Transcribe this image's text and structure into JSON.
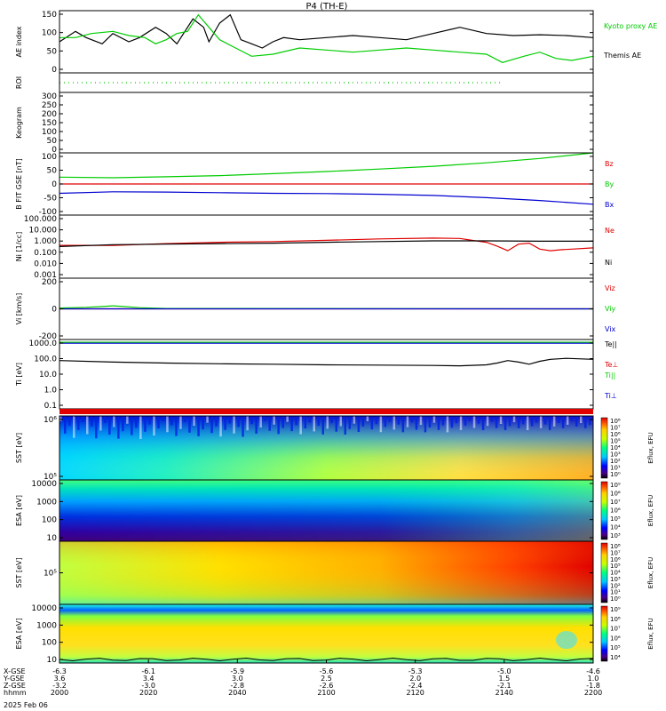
{
  "title": "P4 (TH-E)",
  "date_label": "2025 Feb 06",
  "colors": {
    "red": "#e00000",
    "green": "#00cc00",
    "blue": "#0000d0",
    "black": "#000000"
  },
  "x_axis": {
    "row_labels": [
      "X-GSE",
      "Y-GSE",
      "Z-GSE",
      "hhmm"
    ],
    "ticks": [
      {
        "x": "-6.3",
        "y": "3.6",
        "z": "-3.2",
        "t": "2000",
        "frac": 0.0
      },
      {
        "x": "-6.1",
        "y": "3.4",
        "z": "-3.0",
        "t": "2020",
        "frac": 0.1667
      },
      {
        "x": "-5.9",
        "y": "3.0",
        "z": "-2.8",
        "t": "2040",
        "frac": 0.3333
      },
      {
        "x": "-5.6",
        "y": "2.5",
        "z": "-2.6",
        "t": "2100",
        "frac": 0.5
      },
      {
        "x": "-5.3",
        "y": "2.0",
        "z": "-2.4",
        "t": "2120",
        "frac": 0.6667
      },
      {
        "x": "-5.0",
        "y": "1.5",
        "z": "-2.1",
        "t": "2140",
        "frac": 0.8333
      },
      {
        "x": "-4.6",
        "y": "1.0",
        "z": "-1.8",
        "t": "2200",
        "frac": 1.0
      }
    ]
  },
  "chart_data": [
    {
      "type": "line",
      "name": "ae",
      "ylabel": "AE index",
      "ylim": [
        0,
        150
      ],
      "yticks": [
        "150",
        "100",
        "50",
        "0"
      ],
      "legend": [
        "Kyoto proxy AE",
        "Themis AE"
      ],
      "series": [
        {
          "name": "Themis AE",
          "color": "#000000",
          "x": [
            0,
            0.03,
            0.05,
            0.08,
            0.1,
            0.13,
            0.15,
            0.18,
            0.2,
            0.22,
            0.25,
            0.27,
            0.28,
            0.3,
            0.32,
            0.34,
            0.36,
            0.38,
            0.4,
            0.42,
            0.45,
            0.5,
            0.55,
            0.6,
            0.65,
            0.7,
            0.75,
            0.8,
            0.85,
            0.9,
            0.95,
            1.0
          ],
          "y": [
            75,
            100,
            85,
            70,
            95,
            75,
            85,
            110,
            95,
            70,
            130,
            110,
            75,
            120,
            140,
            80,
            70,
            60,
            75,
            85,
            80,
            85,
            90,
            85,
            80,
            95,
            110,
            95,
            90,
            92,
            90,
            85
          ]
        },
        {
          "name": "Kyoto proxy AE",
          "color": "#00cc00",
          "x": [
            0,
            0.03,
            0.06,
            0.1,
            0.13,
            0.16,
            0.18,
            0.2,
            0.22,
            0.24,
            0.26,
            0.28,
            0.3,
            0.33,
            0.36,
            0.4,
            0.45,
            0.5,
            0.55,
            0.6,
            0.65,
            0.7,
            0.75,
            0.8,
            0.83,
            0.87,
            0.9,
            0.93,
            0.96,
            1.0
          ],
          "y": [
            85,
            85,
            95,
            100,
            90,
            85,
            70,
            80,
            95,
            100,
            140,
            110,
            80,
            60,
            40,
            45,
            60,
            55,
            50,
            55,
            60,
            55,
            50,
            45,
            25,
            40,
            50,
            35,
            30,
            40
          ]
        }
      ]
    },
    {
      "type": "line",
      "name": "roi",
      "ylabel": "ROI",
      "series": [
        {
          "name": "ROI",
          "color": "#00cc00",
          "style": "dotted",
          "x": [
            0,
            0.83
          ],
          "y": [
            0.5,
            0.5
          ]
        }
      ]
    },
    {
      "type": "line",
      "name": "keogram",
      "ylabel": "Keogram",
      "ylim": [
        0,
        300
      ],
      "yticks": [
        "300",
        "250",
        "200",
        "150",
        "100",
        "50",
        "0"
      ],
      "series": []
    },
    {
      "type": "line",
      "name": "bfield",
      "ylabel": "B FIT GSE [nT]",
      "ylim": [
        -100,
        100
      ],
      "yticks": [
        "100",
        "50",
        "0",
        "-50",
        "-100"
      ],
      "legend": [
        "Bz",
        "By",
        "Bx"
      ],
      "series": [
        {
          "name": "Bz",
          "color": "#e00000",
          "x": [
            0,
            1.0
          ],
          "y": [
            0,
            0
          ]
        },
        {
          "name": "By",
          "color": "#00cc00",
          "x": [
            0,
            0.1,
            0.2,
            0.3,
            0.4,
            0.5,
            0.6,
            0.7,
            0.8,
            0.9,
            1.0
          ],
          "y": [
            22,
            20,
            23,
            27,
            33,
            40,
            48,
            57,
            68,
            82,
            100
          ]
        },
        {
          "name": "Bx",
          "color": "#0000d0",
          "x": [
            0,
            0.1,
            0.2,
            0.3,
            0.4,
            0.5,
            0.6,
            0.7,
            0.8,
            0.9,
            1.0
          ],
          "y": [
            -30,
            -25,
            -26,
            -28,
            -30,
            -31,
            -33,
            -37,
            -44,
            -53,
            -65
          ]
        }
      ]
    },
    {
      "type": "line",
      "name": "density",
      "ylabel": "Ni [1/cc]",
      "scale": "log",
      "ylim": [
        0.001,
        100
      ],
      "yticks": [
        "100.000",
        "10.000",
        "1.000",
        "0.100",
        "0.010",
        "0.001"
      ],
      "legend": [
        "Ne",
        "Ni"
      ],
      "series": [
        {
          "name": "Ne",
          "color": "#e00000",
          "x": [
            0,
            0.1,
            0.2,
            0.3,
            0.4,
            0.5,
            0.6,
            0.7,
            0.75,
            0.78,
            0.8,
            0.82,
            0.84,
            0.86,
            0.88,
            0.9,
            0.92,
            0.94,
            0.96,
            1.0
          ],
          "y": [
            0.4,
            0.4,
            0.55,
            0.7,
            0.8,
            1.0,
            1.3,
            1.5,
            1.4,
            0.9,
            0.7,
            0.35,
            0.15,
            0.5,
            0.6,
            0.2,
            0.15,
            0.18,
            0.2,
            0.25
          ]
        },
        {
          "name": "Ni",
          "color": "#000000",
          "x": [
            0,
            0.1,
            0.2,
            0.3,
            0.4,
            0.5,
            0.6,
            0.7,
            0.8,
            0.9,
            1.0
          ],
          "y": [
            0.32,
            0.45,
            0.5,
            0.55,
            0.6,
            0.7,
            0.8,
            0.9,
            0.9,
            0.85,
            0.85
          ]
        }
      ]
    },
    {
      "type": "line",
      "name": "velocity",
      "ylabel": "Vi [km/s]",
      "ylim": [
        -400,
        400
      ],
      "yticks": [
        "200",
        "0",
        "-200"
      ],
      "legend": [
        "Viz",
        "Viy",
        "Vix"
      ],
      "series": [
        {
          "name": "Viz",
          "color": "#e00000",
          "x": [
            0,
            1.0
          ],
          "y": [
            0,
            0
          ]
        },
        {
          "name": "Viy",
          "color": "#00cc00",
          "x": [
            0,
            0.05,
            0.08,
            0.1,
            0.12,
            0.15,
            0.2,
            1.0
          ],
          "y": [
            10,
            20,
            30,
            40,
            30,
            15,
            5,
            0
          ]
        },
        {
          "name": "Vix",
          "color": "#0000d0",
          "x": [
            0,
            1.0
          ],
          "y": [
            0,
            0
          ]
        }
      ]
    },
    {
      "type": "line",
      "name": "temperature",
      "ylabel": "Ti [eV]",
      "scale": "log",
      "ylim": [
        0.05,
        20000
      ],
      "yticks": [
        "1000.0",
        "100.0",
        "10.0",
        "1.0",
        "0.1"
      ],
      "legend": [
        "Te||",
        "Te⊥",
        "Ti||",
        "Ti⊥"
      ],
      "series": [
        {
          "name": "Te||",
          "color": "#000000",
          "x": [
            0,
            0.1,
            0.2,
            0.3,
            0.4,
            0.5,
            0.6,
            0.7,
            0.75,
            0.8,
            0.82,
            0.84,
            0.86,
            0.88,
            0.9,
            0.92,
            0.95,
            1.0
          ],
          "y": [
            400,
            300,
            250,
            220,
            200,
            180,
            170,
            160,
            150,
            180,
            250,
            400,
            300,
            200,
            350,
            500,
            600,
            500
          ]
        },
        {
          "name": "Ti||",
          "color": "#00cc00",
          "x": [
            0,
            1.0
          ],
          "y": [
            12000,
            12000
          ]
        },
        {
          "name": "Ti⊥",
          "color": "#0000d0",
          "x": [
            0,
            1.0
          ],
          "y": [
            10000,
            10000
          ]
        }
      ]
    },
    {
      "type": "heatmap",
      "name": "sst-omni",
      "ylabel": "SST [eV]",
      "yticks": [
        "10⁶",
        "10⁵"
      ],
      "colorbar_label": "Eflux, EFU",
      "colorbar_ticks": [
        "10⁸",
        "10⁷",
        "10⁶",
        "10⁵",
        "10⁴",
        "10³",
        "10²",
        "10¹",
        "10⁰"
      ]
    },
    {
      "type": "heatmap",
      "name": "esa-omni",
      "ylabel": "ESA [eV]",
      "yticks": [
        "10000",
        "1000",
        "100",
        "10"
      ],
      "colorbar_label": "Eflux, EFU",
      "colorbar_ticks": [
        "10⁹",
        "10⁸",
        "10⁷",
        "10⁶",
        "10⁵",
        "10⁴",
        "10³"
      ]
    },
    {
      "type": "heatmap",
      "name": "sst-electron",
      "ylabel": "SST [eV]",
      "yticks": [
        "10⁵"
      ],
      "colorbar_label": "Eflux, EFU",
      "colorbar_ticks": [
        "10⁸",
        "10⁷",
        "10⁶",
        "10⁵",
        "10⁴",
        "10³",
        "10²",
        "10¹",
        "10⁰"
      ]
    },
    {
      "type": "heatmap",
      "name": "esa-electron",
      "ylabel": "ESA [eV]",
      "yticks": [
        "10000",
        "1000",
        "100",
        "10"
      ],
      "colorbar_label": "Eflux, EFU",
      "colorbar_ticks": [
        "10⁹",
        "10⁸",
        "10⁷",
        "10⁶",
        "10⁵",
        "10⁴"
      ]
    }
  ]
}
